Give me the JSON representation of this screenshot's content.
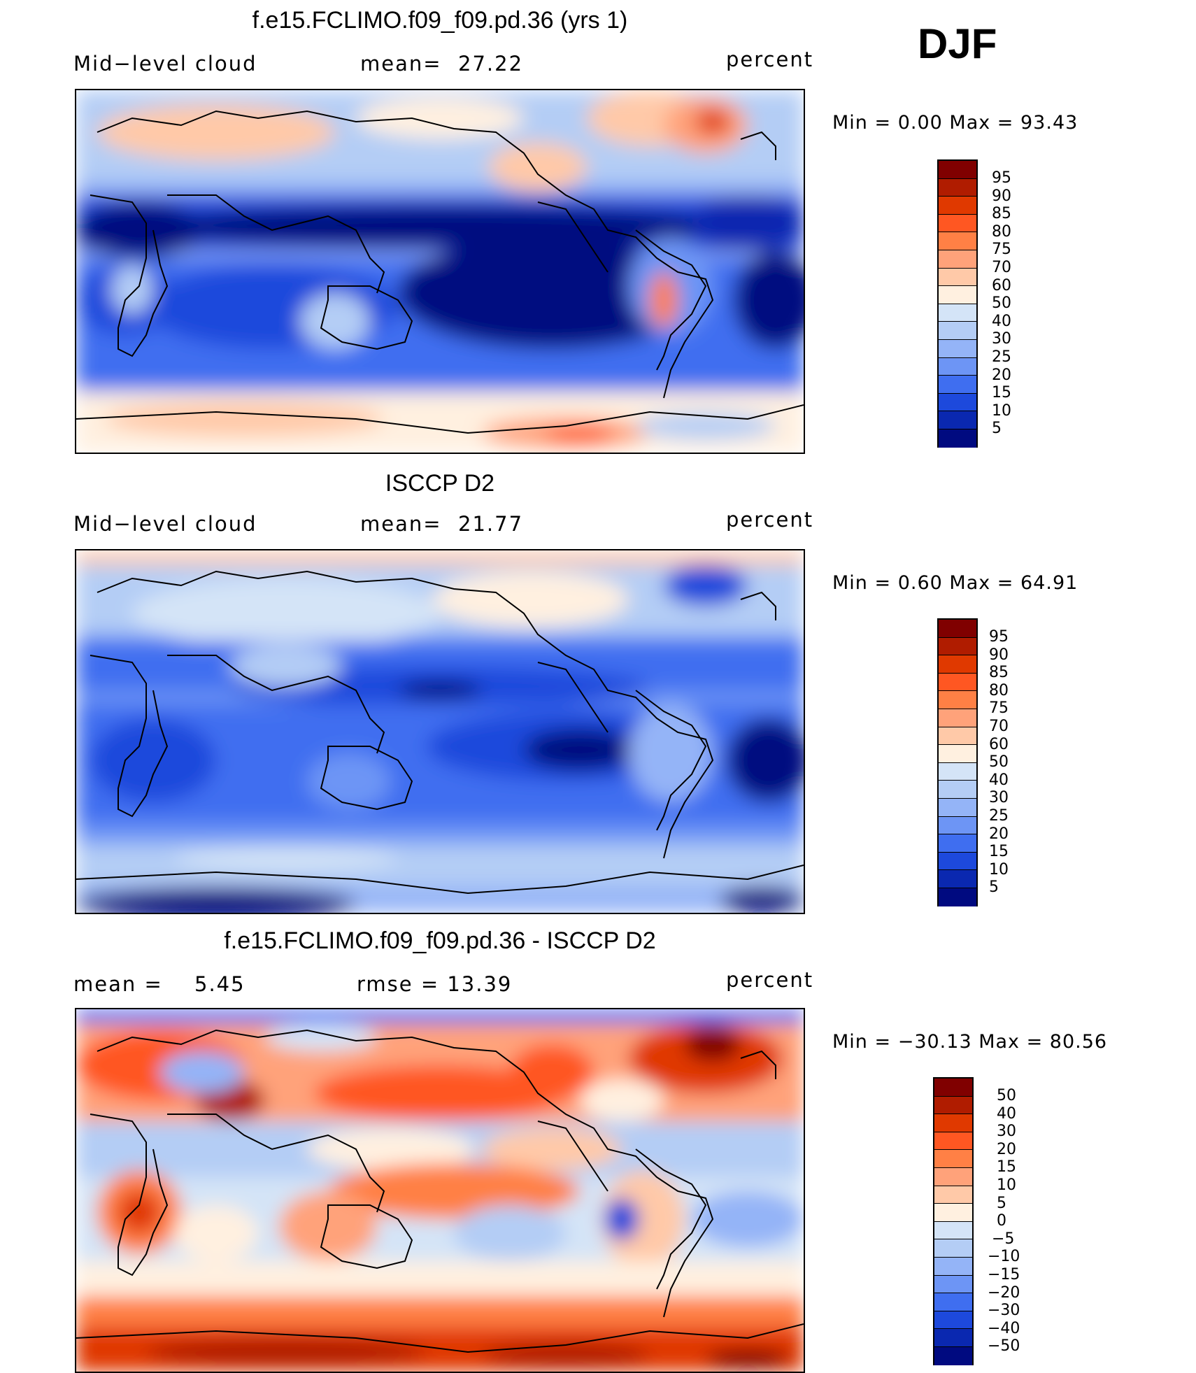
{
  "season": "DJF",
  "panels": [
    {
      "title": "f.e15.FCLIMO.f09_f09.pd.36 (yrs 1)",
      "left_label": "Mid−level cloud",
      "mean_label": "mean=",
      "mean_value": "27.22",
      "units": "percent",
      "minmax": "Min =    0.00  Max =   93.43",
      "colorbar": {
        "colors": [
          "#800000",
          "#b01c00",
          "#e03900",
          "#ff5722",
          "#ff8045",
          "#ffa27a",
          "#ffc9a8",
          "#fff0e0",
          "#d4e4f7",
          "#b4cdf5",
          "#94b4f7",
          "#6d95f5",
          "#3f6ef0",
          "#1d49dc",
          "#0a28b0",
          "#000a80"
        ],
        "labels": [
          "95",
          "90",
          "85",
          "80",
          "75",
          "70",
          "60",
          "50",
          "40",
          "30",
          "25",
          "20",
          "15",
          "10",
          "5"
        ]
      }
    },
    {
      "title": "ISCCP D2",
      "left_label": "Mid−level cloud",
      "mean_label": "mean=",
      "mean_value": "21.77",
      "units": "percent",
      "minmax": "Min =    0.60  Max =   64.91",
      "colorbar": {
        "colors": [
          "#800000",
          "#b01c00",
          "#e03900",
          "#ff5722",
          "#ff8045",
          "#ffa27a",
          "#ffc9a8",
          "#fff0e0",
          "#d4e4f7",
          "#b4cdf5",
          "#94b4f7",
          "#6d95f5",
          "#3f6ef0",
          "#1d49dc",
          "#0a28b0",
          "#000a80"
        ],
        "labels": [
          "95",
          "90",
          "85",
          "80",
          "75",
          "70",
          "60",
          "50",
          "40",
          "30",
          "25",
          "20",
          "15",
          "10",
          "5"
        ]
      }
    },
    {
      "title": "f.e15.FCLIMO.f09_f09.pd.36 - ISCCP D2",
      "left_label": "mean =",
      "mean_label": "5.45",
      "mean_value": "rmse =    13.39",
      "units": "percent",
      "minmax": "Min = −30.13  Max =   80.56",
      "colorbar": {
        "colors": [
          "#800000",
          "#b01c00",
          "#e03900",
          "#ff5722",
          "#ff8045",
          "#ffa27a",
          "#ffc9a8",
          "#fff0e0",
          "#d4e4f7",
          "#b4cdf5",
          "#94b4f7",
          "#6d95f5",
          "#3f6ef0",
          "#1d49dc",
          "#0a28b0",
          "#000a80"
        ],
        "labels": [
          "50",
          "40",
          "30",
          "20",
          "15",
          "10",
          "5",
          "0",
          "−5",
          "−10",
          "−15",
          "−20",
          "−30",
          "−40",
          "−50"
        ]
      }
    }
  ]
}
